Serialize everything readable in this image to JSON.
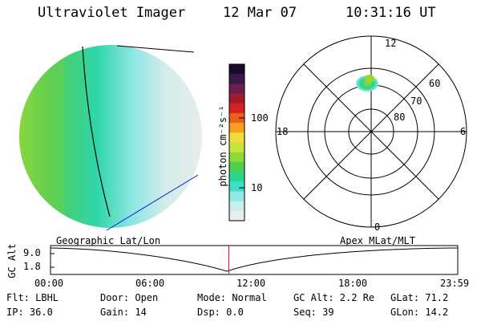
{
  "header": {
    "instrument": "Ultraviolet Imager",
    "date": "12 Mar 07",
    "time": "10:31:16 UT"
  },
  "colorbar": {
    "unit_label": "photon cm⁻²s⁻¹",
    "ticks": [
      "100",
      "10"
    ],
    "colors": [
      "#1a0a2e",
      "#3a1848",
      "#6e1e4e",
      "#a21a2c",
      "#d12422",
      "#ec5e1a",
      "#f6a01c",
      "#f1dc3b",
      "#c7e63a",
      "#8fd83a",
      "#4fce4f",
      "#2ad68e",
      "#3ce0c8",
      "#8ee8e4",
      "#c9eeee",
      "#e8ecec"
    ]
  },
  "polar": {
    "mlt_labels": {
      "top": "12",
      "left": "18",
      "right": "6",
      "bottom": "0"
    },
    "lat_labels": [
      "60",
      "70",
      "80"
    ]
  },
  "timeline": {
    "ylabel": "GC Alt",
    "yticks": [
      "9.0",
      "1.8"
    ],
    "left_caption": "Geographic Lat/Lon",
    "right_caption": "Apex MLat/MLT",
    "xticks": [
      "00:00",
      "06:00",
      "12:00",
      "18:00",
      "23:59"
    ],
    "current_time_fraction": 0.438
  },
  "status": {
    "flt": "Flt: LBHL",
    "ip": "IP: 36.0",
    "door": "Door: Open",
    "gain": "Gain: 14",
    "mode": "Mode: Normal",
    "dsp": "Dsp:     0.0",
    "gcalt": "GC Alt: 2.2 Re",
    "seq": "Seq: 39",
    "glat": "GLat:  71.2",
    "glon": "GLon:  14.2"
  }
}
